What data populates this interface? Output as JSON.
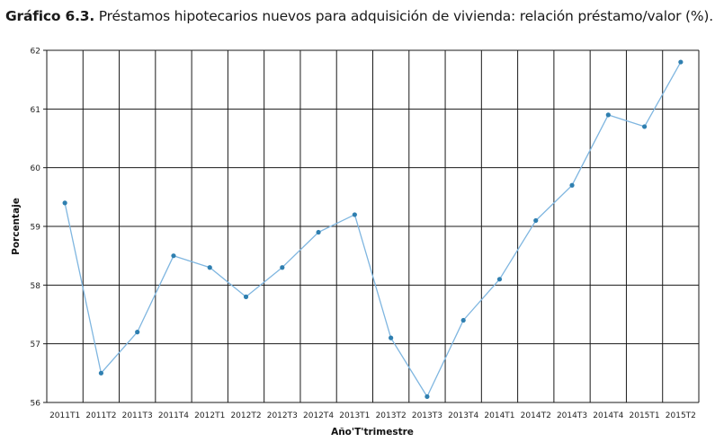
{
  "title": {
    "bold": "Gráfico 6.3.",
    "text": " Préstamos hipotecarios nuevos para adquisición de vivienda: relación préstamo/valor (%)."
  },
  "colors": {
    "line": "#7fb6e0",
    "marker": "#2f7fb0",
    "grid": "#1a1a1a"
  },
  "chart_data": {
    "type": "line",
    "title": "Préstamos hipotecarios nuevos para adquisición de vivienda: relación préstamo/valor (%).",
    "xlabel": "Año'T'trimestre",
    "ylabel": "Porcentaje",
    "ylim": [
      56,
      62
    ],
    "yticks": [
      "56",
      "57",
      "58",
      "59",
      "60",
      "61",
      "62"
    ],
    "grid": true,
    "categories": [
      "2011T1",
      "2011T2",
      "2011T3",
      "2011T4",
      "2012T1",
      "2012T2",
      "2012T3",
      "2012T4",
      "2013T1",
      "2013T2",
      "2013T3",
      "2013T4",
      "2014T1",
      "2014T2",
      "2014T3",
      "2014T4",
      "2015T1",
      "2015T2"
    ],
    "values": [
      59.4,
      56.5,
      57.2,
      58.5,
      58.3,
      57.8,
      58.3,
      58.9,
      59.2,
      57.1,
      56.1,
      57.4,
      58.1,
      59.1,
      59.7,
      60.9,
      60.7,
      61.8
    ]
  }
}
